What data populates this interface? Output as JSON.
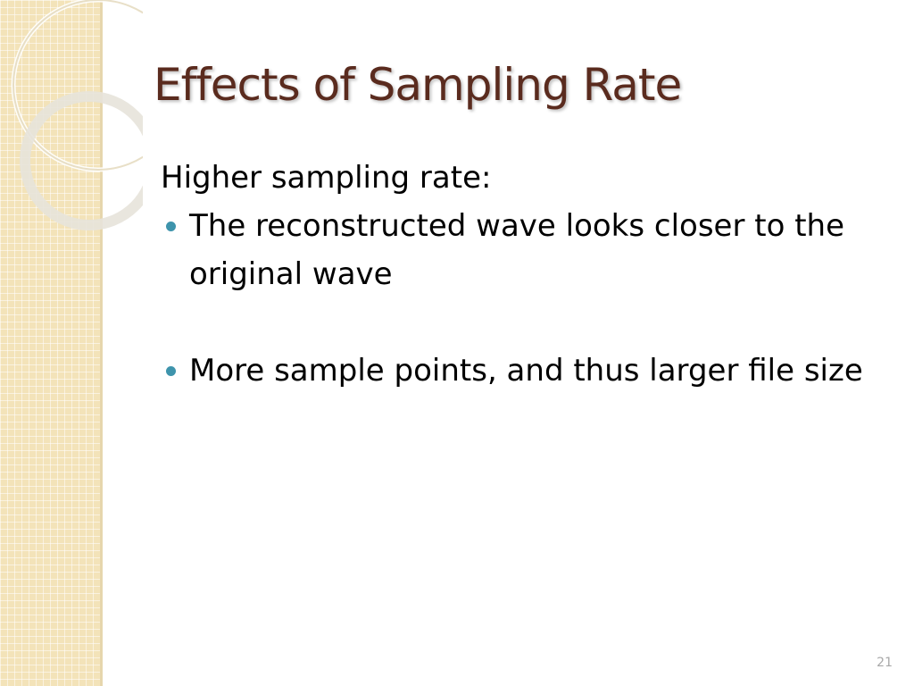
{
  "slide": {
    "title": "Effects of Sampling Rate",
    "intro": "Higher sampling rate:",
    "bullets": [
      "The reconstructed wave looks closer to the original wave",
      "More sample points, and thus larger file size"
    ],
    "page_number": "21"
  }
}
